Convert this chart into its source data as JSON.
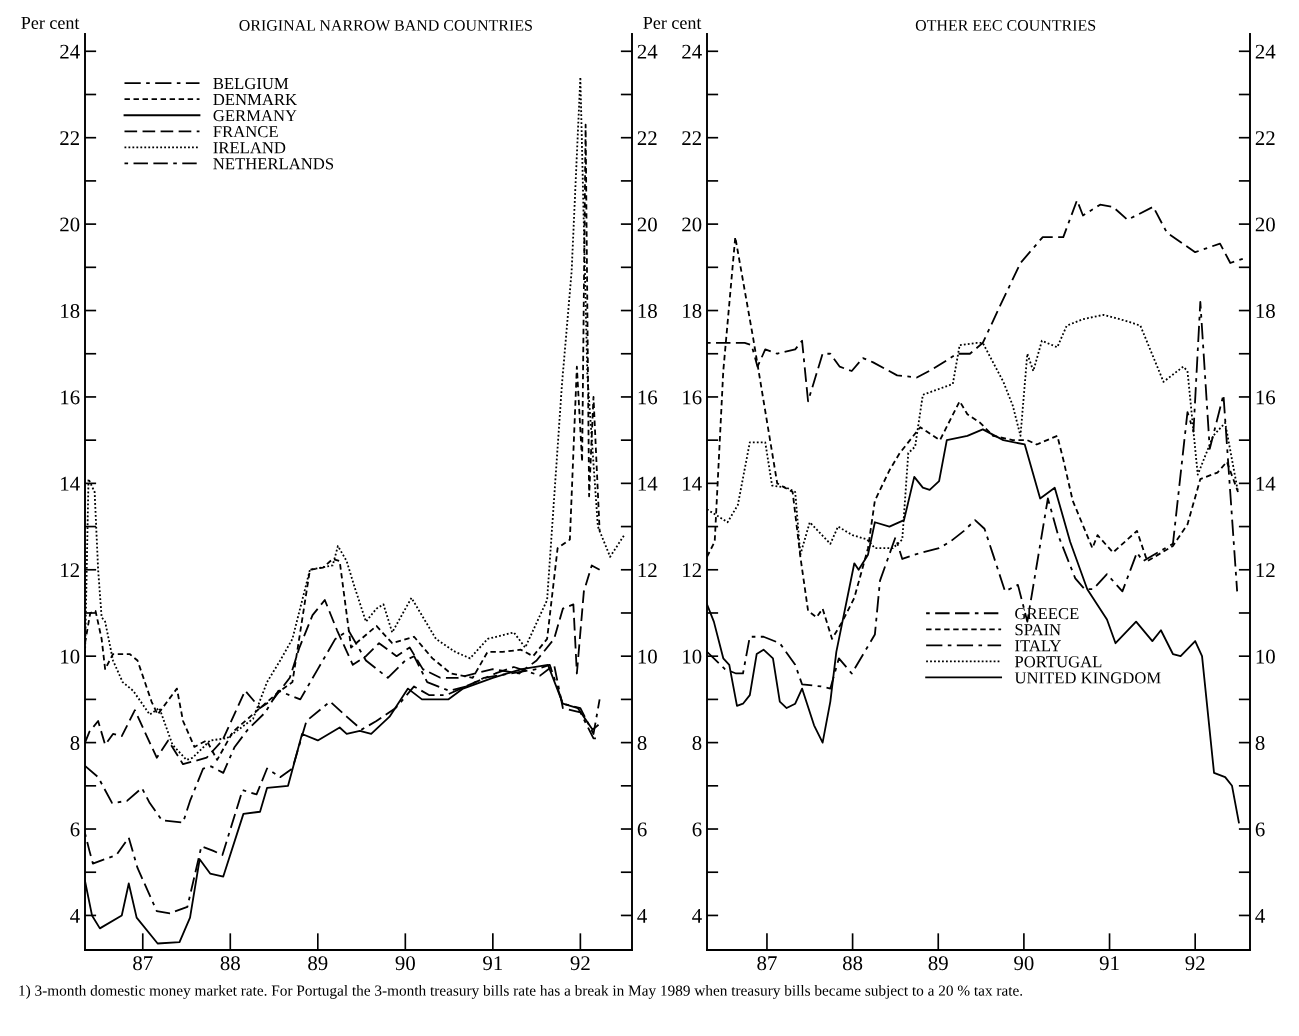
{
  "chart_data": [
    {
      "type": "line",
      "title": "ORIGINAL NARROW BAND COUNTRIES",
      "ylabel": "Per cent",
      "xlim": [
        86.84,
        93.09
      ],
      "ylim": [
        3.2,
        24.4
      ],
      "y2lim": [
        3.2,
        24.4
      ],
      "xticks": [
        {
          "value": 87.5,
          "label": "87"
        },
        {
          "value": 88.5,
          "label": "88"
        },
        {
          "value": 89.5,
          "label": "89"
        },
        {
          "value": 90.5,
          "label": "90"
        },
        {
          "value": 91.5,
          "label": "91"
        },
        {
          "value": 92.5,
          "label": "92"
        }
      ],
      "yticks": [
        4,
        {
          "value": 5,
          "label": null
        },
        6,
        {
          "value": 7,
          "label": null
        },
        8,
        {
          "value": 9,
          "label": null
        },
        10,
        {
          "value": 11,
          "label": null
        },
        12,
        {
          "value": 13,
          "label": null
        },
        14,
        {
          "value": 15,
          "label": null
        },
        16,
        {
          "value": 17,
          "label": null
        },
        18,
        {
          "value": 19,
          "label": null
        },
        20,
        {
          "value": 21,
          "label": null
        },
        22,
        {
          "value": 23,
          "label": null
        },
        24
      ],
      "y2ticks": [
        4,
        {
          "value": 5,
          "label": null
        },
        6,
        {
          "value": 7,
          "label": null
        },
        8,
        {
          "value": 9,
          "label": null
        },
        10,
        {
          "value": 11,
          "label": null
        },
        12,
        {
          "value": 13,
          "label": null
        },
        14,
        {
          "value": 15,
          "label": null
        },
        16,
        {
          "value": 17,
          "label": null
        },
        18,
        {
          "value": 19,
          "label": null
        },
        20,
        {
          "value": 21,
          "label": null
        },
        22,
        {
          "value": 23,
          "label": null
        },
        24
      ],
      "legend": "top left",
      "series": [
        {
          "name": "BELGIUM",
          "color": "#000000",
          "line_style": "dashdot",
          "x": [
            86.84,
            86.99,
            87.15,
            87.32,
            87.49,
            87.58,
            87.72,
            87.96,
            88.04,
            88.19,
            88.28,
            88.42,
            88.55,
            88.7,
            88.9,
            89.05,
            89.3,
            89.5,
            89.7,
            89.85,
            90.05,
            90.3,
            90.5,
            90.6,
            90.75,
            91.0,
            91.2,
            91.4,
            91.7,
            92.0,
            92.15,
            92.3,
            92.5,
            92.65,
            92.72
          ],
          "values": [
            7.46,
            7.2,
            6.6,
            6.65,
            6.95,
            6.6,
            6.2,
            6.15,
            6.65,
            7.4,
            7.45,
            7.3,
            7.9,
            8.3,
            8.7,
            9.2,
            9.0,
            9.7,
            10.4,
            10.6,
            9.9,
            9.5,
            9.9,
            10.0,
            9.4,
            9.2,
            9.3,
            9.5,
            9.6,
            9.7,
            9.8,
            8.9,
            8.8,
            8.2,
            9.0
          ]
        },
        {
          "name": "DENMARK",
          "color": "#000000",
          "line_style": "dashed",
          "x": [
            86.84,
            86.9,
            86.96,
            87.03,
            87.07,
            87.16,
            87.35,
            87.44,
            87.6,
            87.67,
            87.89,
            87.96,
            88.09,
            88.23,
            88.35,
            88.53,
            88.84,
            89.07,
            89.21,
            89.41,
            89.56,
            89.67,
            89.75,
            89.88,
            90.17,
            90.35,
            90.6,
            90.81,
            91.02,
            91.27,
            91.44,
            91.61,
            91.82,
            91.96,
            92.12,
            92.24,
            92.38,
            92.46,
            92.52,
            92.56,
            92.6,
            92.65,
            92.72
          ],
          "values": [
            10.3,
            11.0,
            11.05,
            10.4,
            9.7,
            10.05,
            10.05,
            9.9,
            8.95,
            8.65,
            9.25,
            8.5,
            7.9,
            8.05,
            7.6,
            8.25,
            8.8,
            9.2,
            9.4,
            12.0,
            12.05,
            12.25,
            12.2,
            10.2,
            10.7,
            10.3,
            10.45,
            9.95,
            9.6,
            9.5,
            10.1,
            10.1,
            10.15,
            10.0,
            10.4,
            12.5,
            12.7,
            16.7,
            14.5,
            22.3,
            13.7,
            16.0,
            12.9
          ]
        },
        {
          "name": "GERMANY",
          "color": "#000000",
          "line_style": "solid",
          "x": [
            86.84,
            86.92,
            87.01,
            87.26,
            87.34,
            87.43,
            87.67,
            87.92,
            88.04,
            88.15,
            88.27,
            88.42,
            88.65,
            88.84,
            88.92,
            89.16,
            89.32,
            89.5,
            89.75,
            89.83,
            89.98,
            90.11,
            90.32,
            90.53,
            90.69,
            90.99,
            91.16,
            91.5,
            91.83,
            92.13,
            92.3,
            92.47,
            92.64,
            92.7
          ],
          "values": [
            4.8,
            4.0,
            3.7,
            4.0,
            4.74,
            3.95,
            3.35,
            3.38,
            3.95,
            5.3,
            4.97,
            4.9,
            6.35,
            6.4,
            6.95,
            7.0,
            8.2,
            8.05,
            8.35,
            8.2,
            8.27,
            8.2,
            8.6,
            9.25,
            9.0,
            9.0,
            9.25,
            9.5,
            9.7,
            9.8,
            8.9,
            8.8,
            8.3,
            8.4
          ]
        },
        {
          "name": "FRANCE",
          "color": "#000000",
          "line_style": "longdash",
          "x": [
            86.84,
            86.89,
            86.99,
            87.07,
            87.16,
            87.26,
            87.41,
            87.5,
            87.66,
            87.79,
            87.96,
            88.23,
            88.41,
            88.67,
            88.84,
            88.99,
            89.18,
            89.29,
            89.44,
            89.58,
            89.72,
            89.9,
            90.05,
            90.2,
            90.4,
            90.55,
            90.7,
            90.9,
            91.1,
            91.3,
            91.5,
            91.8,
            92.0,
            92.2,
            92.3,
            92.42,
            92.46,
            92.54,
            92.63,
            92.72
          ],
          "values": [
            8.0,
            8.25,
            8.5,
            7.95,
            8.2,
            8.15,
            8.75,
            8.35,
            7.65,
            8.05,
            7.5,
            7.65,
            8.05,
            9.2,
            8.8,
            9.0,
            9.5,
            10.2,
            10.95,
            11.3,
            10.6,
            9.8,
            10.0,
            10.3,
            10.0,
            10.2,
            9.7,
            9.5,
            9.5,
            9.6,
            9.7,
            9.6,
            9.9,
            10.4,
            11.1,
            11.2,
            9.6,
            11.5,
            12.1,
            12.0
          ]
        },
        {
          "name": "IRELAND",
          "color": "#000000",
          "line_style": "dotted",
          "x": [
            86.84,
            86.88,
            86.95,
            86.99,
            87.03,
            87.07,
            87.16,
            87.27,
            87.39,
            87.58,
            87.69,
            87.84,
            88.0,
            88.07,
            88.27,
            88.46,
            88.76,
            88.92,
            89.07,
            89.21,
            89.41,
            89.67,
            89.73,
            89.83,
            89.92,
            90.05,
            90.17,
            90.25,
            90.35,
            90.57,
            90.85,
            91.07,
            91.24,
            91.44,
            91.74,
            91.87,
            92.12,
            92.29,
            92.4,
            92.5,
            92.58,
            92.7,
            92.84,
            93.0
          ],
          "values": [
            10.0,
            14.1,
            13.8,
            12.0,
            10.9,
            10.8,
            9.9,
            9.4,
            9.2,
            8.65,
            8.8,
            7.95,
            7.6,
            7.65,
            8.05,
            8.1,
            8.55,
            9.4,
            9.9,
            10.4,
            12.0,
            12.1,
            12.55,
            12.2,
            11.6,
            10.8,
            11.1,
            11.2,
            10.55,
            11.35,
            10.4,
            10.1,
            9.95,
            10.4,
            10.55,
            10.2,
            11.3,
            16.3,
            18.9,
            23.4,
            16.5,
            13.0,
            12.3,
            12.8
          ]
        },
        {
          "name": "NETHERLANDS",
          "color": "#000000",
          "line_style": "dotdashdash",
          "x": [
            86.84,
            86.89,
            86.93,
            87.2,
            87.34,
            87.44,
            87.66,
            87.81,
            88.01,
            88.17,
            88.3,
            88.41,
            88.64,
            88.8,
            88.92,
            89.07,
            89.21,
            89.37,
            89.64,
            89.83,
            90.0,
            90.17,
            90.39,
            90.6,
            90.77,
            90.97,
            91.19,
            91.53,
            91.74,
            92.04,
            92.2,
            92.3,
            92.5,
            92.65,
            92.72
          ],
          "values": [
            5.9,
            5.5,
            5.2,
            5.4,
            5.8,
            5.1,
            4.1,
            4.05,
            4.2,
            5.6,
            5.5,
            5.4,
            6.9,
            6.8,
            7.4,
            7.2,
            7.4,
            8.5,
            8.95,
            8.6,
            8.3,
            8.5,
            8.8,
            9.3,
            9.1,
            9.1,
            9.3,
            9.6,
            9.75,
            9.55,
            9.8,
            8.8,
            8.7,
            8.1,
            8.1
          ]
        }
      ],
      "annotations": [
        "1) 3-month domestic money market rate. For Portugal the 3-month treasury bills rate has a break in May 1989 when treasury bills became subject to a 20 % tax rate."
      ]
    },
    {
      "type": "line",
      "title": "OTHER EEC COUNTRIES",
      "ylabel": "Per cent",
      "xlim": [
        86.8,
        93.14
      ],
      "ylim": [
        3.2,
        24.4
      ],
      "y2lim": [
        3.2,
        24.4
      ],
      "xticks": [
        {
          "value": 87.5,
          "label": "87"
        },
        {
          "value": 88.5,
          "label": "88"
        },
        {
          "value": 89.5,
          "label": "89"
        },
        {
          "value": 90.5,
          "label": "90"
        },
        {
          "value": 91.5,
          "label": "91"
        },
        {
          "value": 92.5,
          "label": "92"
        }
      ],
      "yticks": [
        4,
        {
          "value": 5,
          "label": null
        },
        6,
        {
          "value": 7,
          "label": null
        },
        8,
        {
          "value": 9,
          "label": null
        },
        10,
        {
          "value": 11,
          "label": null
        },
        12,
        {
          "value": 13,
          "label": null
        },
        14,
        {
          "value": 15,
          "label": null
        },
        16,
        {
          "value": 17,
          "label": null
        },
        18,
        {
          "value": 19,
          "label": null
        },
        20,
        {
          "value": 21,
          "label": null
        },
        22,
        {
          "value": 23,
          "label": null
        },
        24
      ],
      "y2ticks": [
        4,
        {
          "value": 5,
          "label": null
        },
        6,
        {
          "value": 7,
          "label": null
        },
        8,
        {
          "value": 9,
          "label": null
        },
        10,
        {
          "value": 11,
          "label": null
        },
        12,
        {
          "value": 13,
          "label": null
        },
        14,
        {
          "value": 15,
          "label": null
        },
        16,
        {
          "value": 17,
          "label": null
        },
        18,
        {
          "value": 19,
          "label": null
        },
        20,
        {
          "value": 21,
          "label": null
        },
        22,
        {
          "value": 23,
          "label": null
        },
        24
      ],
      "legend": "bottom",
      "series": [
        {
          "name": "GREECE",
          "color": "#000000",
          "line_style": "dotdashdash",
          "x": [
            86.8,
            87.24,
            87.32,
            87.39,
            87.48,
            87.62,
            87.83,
            87.91,
            87.98,
            88.15,
            88.24,
            88.35,
            88.49,
            88.62,
            88.74,
            89.02,
            89.25,
            89.44,
            89.72,
            89.87,
            90.02,
            90.22,
            90.46,
            90.72,
            90.96,
            91.12,
            91.19,
            91.39,
            91.54,
            91.71,
            92.01,
            92.17,
            92.5,
            92.79,
            92.91,
            93.06
          ],
          "values": [
            17.25,
            17.25,
            17.2,
            16.7,
            17.1,
            17.0,
            17.1,
            17.3,
            15.9,
            17.0,
            17.0,
            16.7,
            16.6,
            16.9,
            16.8,
            16.5,
            16.45,
            16.65,
            17.0,
            17.0,
            17.25,
            18.1,
            19.1,
            19.7,
            19.7,
            20.55,
            20.2,
            20.45,
            20.4,
            20.1,
            20.4,
            19.8,
            19.35,
            19.55,
            19.1,
            19.2
          ]
        },
        {
          "name": "SPAIN",
          "color": "#000000",
          "line_style": "dashed",
          "x": [
            86.8,
            86.89,
            86.99,
            87.13,
            87.34,
            87.62,
            87.8,
            87.89,
            87.98,
            88.08,
            88.15,
            88.26,
            88.38,
            88.52,
            88.68,
            88.76,
            88.93,
            89.05,
            89.29,
            89.52,
            89.75,
            89.84,
            89.99,
            90.14,
            90.37,
            90.54,
            90.65,
            90.89,
            90.96,
            91.07,
            91.3,
            91.36,
            91.54,
            91.82,
            91.94,
            92.24,
            92.41,
            92.56,
            92.76,
            92.87,
            93.0
          ],
          "values": [
            12.3,
            12.65,
            16.6,
            19.7,
            17.35,
            14.0,
            13.8,
            12.3,
            11.05,
            10.9,
            11.1,
            10.4,
            10.8,
            11.35,
            12.5,
            13.6,
            14.3,
            14.7,
            15.3,
            15.0,
            15.9,
            15.6,
            15.4,
            15.1,
            15.0,
            15.0,
            14.9,
            15.1,
            14.55,
            13.6,
            12.5,
            12.8,
            12.4,
            12.9,
            12.2,
            12.55,
            13.05,
            14.1,
            14.25,
            14.5,
            13.8
          ]
        },
        {
          "name": "ITALY",
          "color": "#000000",
          "line_style": "dashdot",
          "x": [
            86.8,
            86.88,
            87.01,
            87.14,
            87.22,
            87.3,
            87.46,
            87.65,
            87.83,
            87.91,
            88.13,
            88.24,
            88.34,
            88.49,
            88.76,
            88.82,
            89.0,
            89.08,
            89.22,
            89.51,
            89.64,
            89.8,
            89.93,
            90.04,
            90.14,
            90.28,
            90.43,
            90.54,
            90.78,
            90.9,
            91.1,
            91.21,
            91.31,
            91.47,
            91.65,
            91.82,
            91.89,
            92.24,
            92.41,
            92.48,
            92.56,
            92.67,
            92.83,
            92.99
          ],
          "values": [
            10.1,
            9.95,
            9.7,
            9.6,
            9.6,
            10.45,
            10.45,
            10.3,
            9.8,
            9.35,
            9.3,
            9.25,
            9.95,
            9.6,
            10.5,
            11.75,
            12.75,
            12.25,
            12.35,
            12.5,
            12.65,
            12.9,
            13.15,
            12.95,
            12.35,
            11.5,
            11.65,
            10.8,
            13.65,
            12.8,
            11.8,
            11.55,
            11.55,
            11.9,
            11.5,
            12.4,
            12.2,
            12.6,
            15.65,
            15.2,
            18.2,
            14.8,
            16.05,
            11.5
          ]
        },
        {
          "name": "PORTUGAL",
          "color": "#000000",
          "line_style": "dotted",
          "x": [
            86.8,
            87.04,
            87.16,
            87.3,
            87.48,
            87.56,
            87.73,
            87.83,
            87.89,
            88.0,
            88.24,
            88.33,
            88.5,
            88.67,
            88.76,
            88.97,
            89.08,
            89.15,
            89.23,
            89.32,
            89.67,
            89.75,
            89.95,
            90.02,
            90.26,
            90.37,
            90.46,
            90.54,
            90.61,
            90.71,
            90.89,
            91.0,
            91.19,
            91.43,
            91.71,
            91.86,
            92.13,
            92.36,
            92.41,
            92.53,
            92.71,
            92.85,
            93.0
          ],
          "values": [
            13.4,
            13.1,
            13.5,
            14.95,
            14.95,
            13.95,
            13.9,
            13.8,
            12.35,
            13.1,
            12.6,
            13.0,
            12.8,
            12.7,
            12.5,
            12.5,
            12.7,
            14.7,
            14.85,
            16.05,
            16.3,
            17.2,
            17.25,
            17.25,
            16.35,
            15.8,
            15.1,
            17.0,
            16.6,
            17.3,
            17.15,
            17.65,
            17.8,
            17.9,
            17.75,
            17.65,
            16.35,
            16.7,
            16.6,
            14.2,
            15.1,
            15.4,
            13.8
          ]
        },
        {
          "name": "UNITED KINGDOM",
          "color": "#000000",
          "line_style": "solid",
          "x": [
            86.8,
            86.88,
            86.99,
            87.06,
            87.15,
            87.22,
            87.3,
            87.38,
            87.46,
            87.57,
            87.65,
            87.73,
            87.83,
            87.91,
            88.05,
            88.15,
            88.24,
            88.31,
            88.52,
            88.57,
            88.68,
            88.76,
            88.93,
            89.1,
            89.22,
            89.32,
            89.4,
            89.51,
            89.6,
            89.84,
            90.02,
            90.26,
            90.51,
            90.69,
            90.86,
            91.04,
            91.24,
            91.47,
            91.57,
            91.81,
            92.0,
            92.1,
            92.24,
            92.33,
            92.5,
            92.58,
            92.72,
            92.85,
            92.93,
            93.01
          ],
          "values": [
            11.2,
            10.8,
            9.95,
            9.8,
            8.85,
            8.9,
            9.1,
            10.05,
            10.15,
            9.95,
            8.95,
            8.8,
            8.9,
            9.25,
            8.4,
            8.0,
            8.95,
            10.1,
            12.15,
            12.0,
            12.35,
            13.1,
            13.0,
            13.15,
            14.15,
            13.9,
            13.85,
            14.05,
            15.0,
            15.1,
            15.25,
            15.0,
            14.9,
            13.65,
            13.9,
            12.65,
            11.55,
            10.85,
            10.3,
            10.8,
            10.35,
            10.6,
            10.05,
            10.0,
            10.35,
            10.0,
            7.3,
            7.2,
            7.0,
            6.15
          ]
        }
      ]
    }
  ]
}
